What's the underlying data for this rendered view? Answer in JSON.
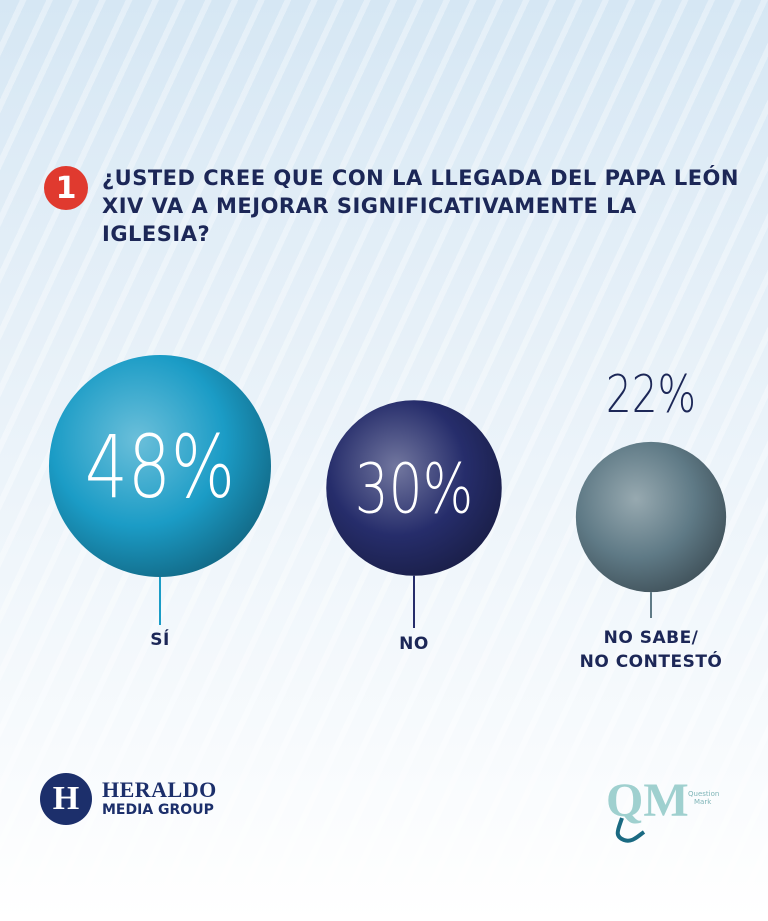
{
  "question": {
    "number": "1",
    "text_line1": "¿USTED CREE QUE CON LA LLEGADA DEL PAPA LEÓN",
    "text_line2": "XIV VA A MEJORAR SIGNIFICATIVAMENTE LA IGLESIA?"
  },
  "chart_data": {
    "type": "bubble",
    "title": "¿USTED CREE QUE CON LA LLEGADA DEL PAPA LEÓN XIV VA A MEJORAR SIGNIFICATIVAMENTE LA IGLESIA?",
    "categories": [
      "SÍ",
      "NO",
      "NO SABE/ NO CONTESTÓ"
    ],
    "category_lines": [
      [
        "SÍ"
      ],
      [
        "NO"
      ],
      [
        "NO SABE/",
        "NO CONTESTÓ"
      ]
    ],
    "values": [
      48,
      30,
      22
    ],
    "value_labels": [
      "48%",
      "30%",
      "22%"
    ],
    "unit": "%",
    "colors": [
      "#1b9cc6",
      "#262d6b",
      "#5f7a86"
    ],
    "label_position": [
      "inside",
      "inside",
      "above"
    ]
  },
  "logos": {
    "heraldo": {
      "badge": "H",
      "line1": "HERALDO",
      "line2": "MEDIA GROUP",
      "color": "#1c2f6b"
    },
    "question_mark": {
      "letters": "QM",
      "line1": "Question",
      "line2": "Mark",
      "color": "#7fb5b8"
    }
  }
}
